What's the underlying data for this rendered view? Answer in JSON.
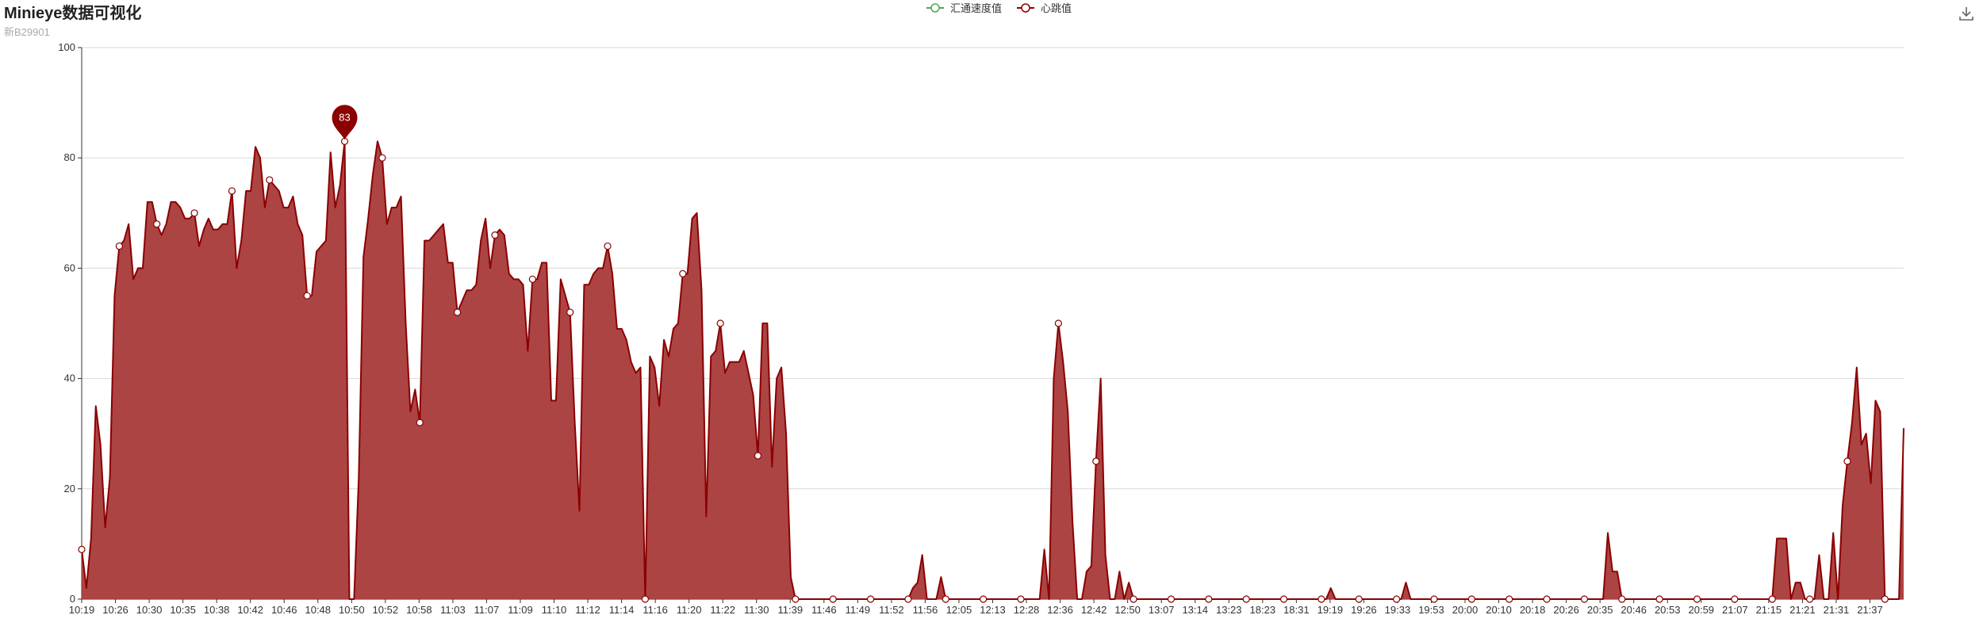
{
  "header": {
    "title": "Minieye数据可视化",
    "subtitle": "新B29901"
  },
  "chart_data": {
    "type": "area",
    "ylim": [
      0,
      100
    ],
    "yticks": [
      0,
      20,
      40,
      60,
      80,
      100
    ],
    "grid": true,
    "legend_position": "top-center",
    "legend": [
      {
        "name": "汇通速度值",
        "color": "#4fa84f"
      },
      {
        "name": "心跳值",
        "color": "#8b0000"
      }
    ],
    "colors": {
      "line": "#8b0000",
      "fill": "#a83a3a"
    },
    "x_labels": [
      "10:19",
      "10:26",
      "10:30",
      "10:35",
      "10:38",
      "10:42",
      "10:46",
      "10:48",
      "10:50",
      "10:52",
      "10:58",
      "11:03",
      "11:07",
      "11:09",
      "11:10",
      "11:12",
      "11:14",
      "11:16",
      "11:20",
      "11:22",
      "11:30",
      "11:39",
      "11:46",
      "11:49",
      "11:52",
      "11:56",
      "12:05",
      "12:13",
      "12:28",
      "12:36",
      "12:42",
      "12:50",
      "13:07",
      "13:14",
      "13:23",
      "18:23",
      "18:31",
      "19:19",
      "19:26",
      "19:33",
      "19:53",
      "20:00",
      "20:10",
      "20:18",
      "20:26",
      "20:35",
      "20:46",
      "20:53",
      "20:59",
      "21:07",
      "21:15",
      "21:21",
      "21:31",
      "21:37"
    ],
    "series": [
      {
        "name": "心跳值",
        "values": [
          9,
          2,
          11,
          35,
          28,
          13,
          22,
          55,
          64,
          65,
          68,
          58,
          60,
          60,
          72,
          72,
          68,
          66,
          68,
          72,
          72,
          71,
          69,
          69,
          70,
          64,
          67,
          69,
          67,
          67,
          68,
          68,
          74,
          60,
          65,
          74,
          74,
          82,
          80,
          71,
          76,
          75,
          74,
          71,
          71,
          73,
          68,
          66,
          55,
          55,
          63,
          64,
          65,
          81,
          71,
          75,
          83,
          0,
          0,
          22,
          62,
          69,
          77,
          83,
          80,
          68,
          71,
          71,
          73,
          50,
          34,
          38,
          32,
          65,
          65,
          66,
          67,
          68,
          61,
          61,
          52,
          54,
          56,
          56,
          57,
          65,
          69,
          60,
          66,
          67,
          66,
          59,
          58,
          58,
          57,
          45,
          58,
          58,
          61,
          61,
          36,
          36,
          58,
          55,
          52,
          32,
          16,
          57,
          57,
          59,
          60,
          60,
          64,
          59,
          49,
          49,
          47,
          43,
          41,
          42,
          0,
          44,
          42,
          35,
          47,
          44,
          49,
          50,
          59,
          59,
          69,
          70,
          56,
          15,
          44,
          45,
          50,
          41,
          43,
          43,
          43,
          45,
          41,
          37,
          26,
          50,
          50,
          24,
          40,
          42,
          30,
          4,
          0,
          0,
          0,
          0,
          0,
          0,
          0,
          0,
          0,
          0,
          0,
          0,
          0,
          0,
          0,
          0,
          0,
          0,
          0,
          0,
          0,
          0,
          0,
          0,
          0,
          2,
          3,
          8,
          0,
          0,
          0,
          4,
          0,
          0,
          0,
          0,
          0,
          0,
          0,
          0,
          0,
          0,
          0,
          0,
          0,
          0,
          0,
          0,
          0,
          0,
          0,
          0,
          0,
          9,
          0,
          40,
          50,
          43,
          34,
          14,
          0,
          0,
          5,
          6,
          25,
          40,
          8,
          0,
          0,
          5,
          0,
          3,
          0,
          0,
          0,
          0,
          0,
          0,
          0,
          0,
          0,
          0,
          0,
          0,
          0,
          0,
          0,
          0,
          0,
          0,
          0,
          0,
          0,
          0,
          0,
          0,
          0,
          0,
          0,
          0,
          0,
          0,
          0,
          0,
          0,
          0,
          0,
          0,
          0,
          0,
          0,
          0,
          0,
          0,
          2,
          0,
          0,
          0,
          0,
          0,
          0,
          0,
          0,
          0,
          0,
          0,
          0,
          0,
          0,
          0,
          3,
          0,
          0,
          0,
          0,
          0,
          0,
          0,
          0,
          0,
          0,
          0,
          0,
          0,
          0,
          0,
          0,
          0,
          0,
          0,
          0,
          0,
          0,
          0,
          0,
          0,
          0,
          0,
          0,
          0,
          0,
          0,
          0,
          0,
          0,
          0,
          0,
          0,
          0,
          0,
          0,
          0,
          0,
          12,
          5,
          5,
          0,
          0,
          0,
          0,
          0,
          0,
          0,
          0,
          0,
          0,
          0,
          0,
          0,
          0,
          0,
          0,
          0,
          0,
          0,
          0,
          0,
          0,
          0,
          0,
          0,
          0,
          0,
          0,
          0,
          0,
          0,
          0,
          0,
          11,
          11,
          11,
          0,
          3,
          3,
          0,
          0,
          0,
          8,
          0,
          0,
          12,
          0,
          17,
          25,
          32,
          42,
          28,
          30,
          21,
          36,
          34,
          0,
          0,
          0,
          0,
          31
        ]
      }
    ],
    "markpoint": {
      "label": "83",
      "value": 83,
      "index": 56
    }
  }
}
